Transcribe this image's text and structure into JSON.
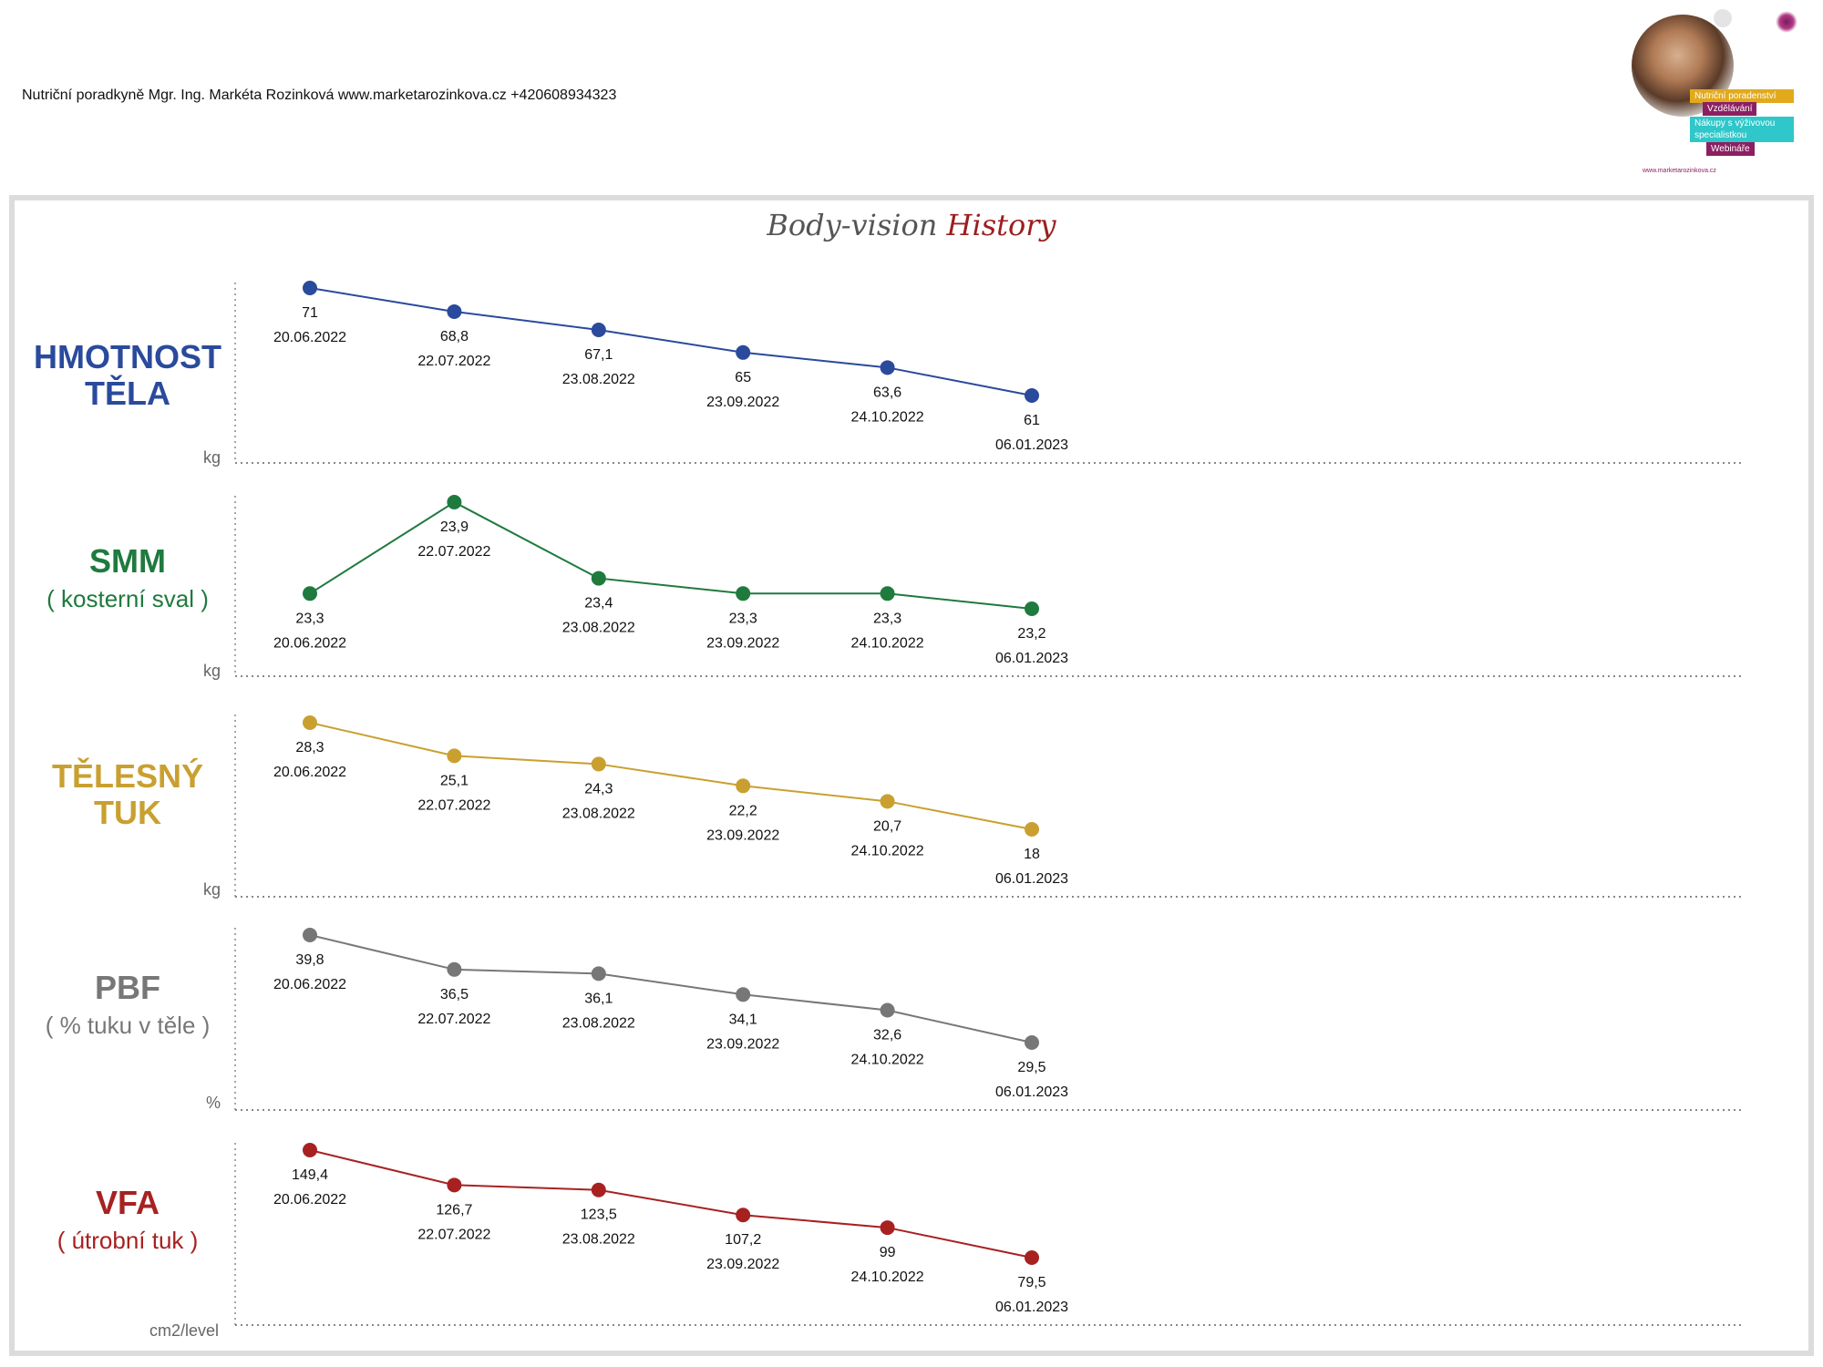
{
  "header": {
    "text": "Nutriční poradkyně Mgr. Ing. Markéta Rozinková www.marketarozinkova.cz +420608934323"
  },
  "logo": {
    "tags": [
      "Nutriční poradenství",
      "Vzdělávání",
      "Nákupy s výživovou specialistkou",
      "Webináře"
    ],
    "url": "www.marketarozinkova.cz",
    "colors": {
      "yellow": "#e2a91c",
      "purple": "#8c1f62",
      "cyan": "#2fc7c9"
    }
  },
  "title": {
    "part1": "Body-vision",
    "part2": "History"
  },
  "chart_data": [
    {
      "type": "line",
      "title_main": "HMOTNOST TĚLA",
      "title_sub": "",
      "unit": "kg",
      "color": "#2a4a9c",
      "x": [
        "20.06.2022",
        "22.07.2022",
        "23.08.2022",
        "23.09.2022",
        "24.10.2022",
        "06.01.2023"
      ],
      "values": [
        71,
        68.8,
        67.1,
        65,
        63.6,
        61
      ],
      "value_labels": [
        "71",
        "68,8",
        "67,1",
        "65",
        "63,6",
        "61"
      ],
      "label_position": [
        "below",
        "below",
        "below",
        "below",
        "below",
        "below"
      ]
    },
    {
      "type": "line",
      "title_main": "SMM",
      "title_sub": "( kosterní sval )",
      "unit": "kg",
      "color": "#1f7a3e",
      "x": [
        "20.06.2022",
        "22.07.2022",
        "23.08.2022",
        "23.09.2022",
        "24.10.2022",
        "06.01.2023"
      ],
      "values": [
        23.3,
        23.9,
        23.4,
        23.3,
        23.3,
        23.2
      ],
      "value_labels": [
        "23,3",
        "23,9",
        "23,4",
        "23,3",
        "23,3",
        "23,2"
      ],
      "label_position": [
        "below",
        "below",
        "below",
        "below",
        "below",
        "below"
      ]
    },
    {
      "type": "line",
      "title_main": "TĚLESNÝ TUK",
      "title_sub": "",
      "unit": "kg",
      "color": "#c9a030",
      "x": [
        "20.06.2022",
        "22.07.2022",
        "23.08.2022",
        "23.09.2022",
        "24.10.2022",
        "06.01.2023"
      ],
      "values": [
        28.3,
        25.1,
        24.3,
        22.2,
        20.7,
        18
      ],
      "value_labels": [
        "28,3",
        "25,1",
        "24,3",
        "22,2",
        "20,7",
        "18"
      ],
      "label_position": [
        "below",
        "below",
        "below",
        "below",
        "below",
        "below"
      ]
    },
    {
      "type": "line",
      "title_main": "PBF",
      "title_sub": "( % tuku v těle )",
      "unit": "%",
      "color": "#777777",
      "x": [
        "20.06.2022",
        "22.07.2022",
        "23.08.2022",
        "23.09.2022",
        "24.10.2022",
        "06.01.2023"
      ],
      "values": [
        39.8,
        36.5,
        36.1,
        34.1,
        32.6,
        29.5
      ],
      "value_labels": [
        "39,8",
        "36,5",
        "36,1",
        "34,1",
        "32,6",
        "29,5"
      ],
      "label_position": [
        "below",
        "below",
        "below",
        "below",
        "below",
        "below"
      ]
    },
    {
      "type": "line",
      "title_main": "VFA",
      "title_sub": "( útrobní tuk )",
      "unit": "cm2/level",
      "color": "#a82121",
      "x": [
        "20.06.2022",
        "22.07.2022",
        "23.08.2022",
        "23.09.2022",
        "24.10.2022",
        "06.01.2023"
      ],
      "values": [
        149.4,
        126.7,
        123.5,
        107.2,
        99,
        79.5
      ],
      "value_labels": [
        "149,4",
        "126,7",
        "123,5",
        "107,2",
        "99",
        "79,5"
      ],
      "label_position": [
        "below",
        "below",
        "below",
        "below",
        "below",
        "below"
      ]
    }
  ]
}
